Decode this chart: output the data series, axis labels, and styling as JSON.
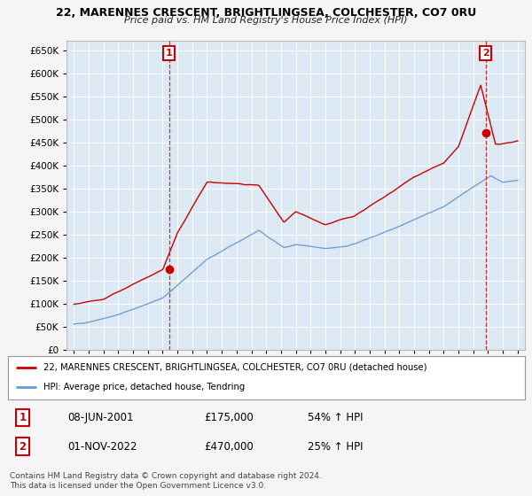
{
  "title1": "22, MARENNES CRESCENT, BRIGHTLINGSEA, COLCHESTER, CO7 0RU",
  "title2": "Price paid vs. HM Land Registry's House Price Index (HPI)",
  "legend_line1": "22, MARENNES CRESCENT, BRIGHTLINGSEA, COLCHESTER, CO7 0RU (detached house)",
  "legend_line2": "HPI: Average price, detached house, Tendring",
  "annotation1_date": "08-JUN-2001",
  "annotation1_price": "£175,000",
  "annotation1_hpi": "54% ↑ HPI",
  "annotation2_date": "01-NOV-2022",
  "annotation2_price": "£470,000",
  "annotation2_hpi": "25% ↑ HPI",
  "footer": "Contains HM Land Registry data © Crown copyright and database right 2024.\nThis data is licensed under the Open Government Licence v3.0.",
  "sale1_year": 2001.44,
  "sale1_value": 175000,
  "sale2_year": 2022.83,
  "sale2_value": 470000,
  "hpi_color": "#6699cc",
  "price_color": "#cc0000",
  "background_color": "#f5f5f5",
  "plot_bg": "#dde8f5",
  "grid_color": "#ffffff",
  "annotation_box_color": "#cc0000",
  "ylim": [
    0,
    670000
  ],
  "xlim_min": 1994.5,
  "xlim_max": 2025.5
}
